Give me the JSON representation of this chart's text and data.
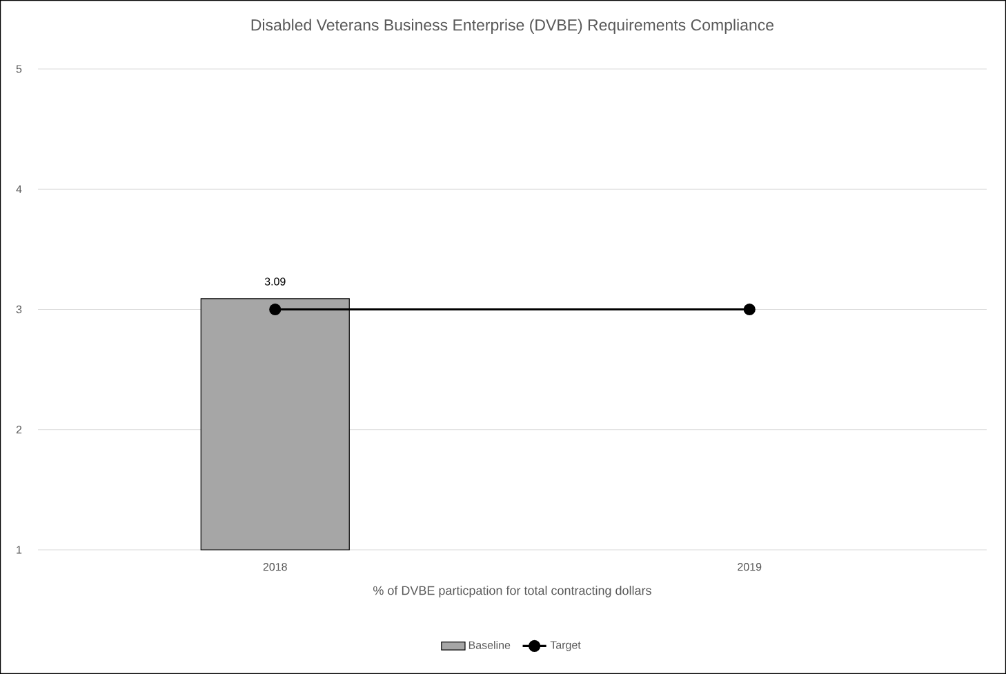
{
  "chart_data": {
    "type": "bar",
    "title": "Disabled Veterans Business Enterprise (DVBE) Requirements Compliance",
    "xlabel": "% of DVBE particpation for total contracting dollars",
    "categories": [
      "2018",
      "2019"
    ],
    "series": [
      {
        "name": "Baseline",
        "color": "#a6a6a6",
        "values": [
          3.09,
          null
        ],
        "value_labels": [
          "3.09",
          null
        ]
      },
      {
        "name": "Target",
        "type": "line",
        "color": "#000000",
        "marker": "circle",
        "values": [
          3,
          3
        ]
      }
    ],
    "ylim": [
      1,
      5
    ],
    "yticks": [
      1,
      2,
      3,
      4,
      5
    ],
    "grid": "y",
    "legend": "bottom"
  }
}
